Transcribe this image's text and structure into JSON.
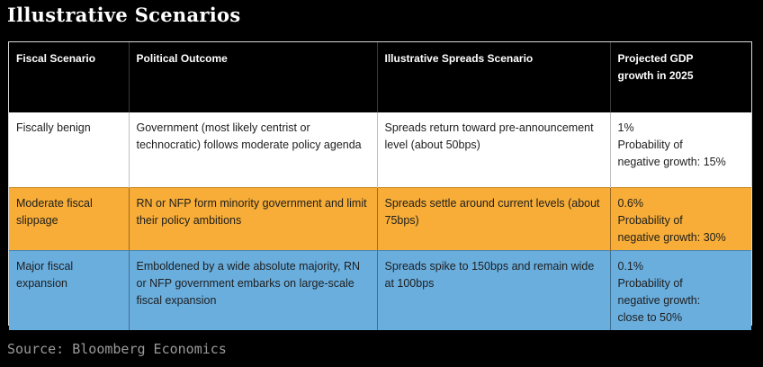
{
  "title": "Illustrative Scenarios",
  "colors": {
    "background": "#000000",
    "header_row": "#000000",
    "benign_row": "#ffffff",
    "moderate_row": "#f7ad37",
    "major_row": "#6aaede"
  },
  "table": {
    "headers": {
      "fiscal_scenario": "Fiscal Scenario",
      "political_outcome": "Political Outcome",
      "spreads_scenario": "Illustrative Spreads Scenario",
      "gdp_growth_line1": "Projected GDP",
      "gdp_growth_line2": "growth in 2025"
    },
    "rows": [
      {
        "fiscal_scenario": "Fiscally benign",
        "political_outcome": "Government (most likely centrist or technocratic) follows moderate policy agenda",
        "spreads_scenario": "Spreads return toward pre-announcement level (about 50bps)",
        "gdp_growth": "1%",
        "probability_line1": "Probability of",
        "probability_line2": "negative growth: 15%"
      },
      {
        "fiscal_scenario": "Moderate fiscal slippage",
        "political_outcome": "RN or NFP form minority government and limit their policy ambitions",
        "spreads_scenario": "Spreads settle around current levels (about 75bps)",
        "gdp_growth": "0.6%",
        "probability_line1": "Probability of",
        "probability_line2": "negative growth: 30%"
      },
      {
        "fiscal_scenario": "Major fiscal expansion",
        "political_outcome": "Emboldened by a wide absolute majority, RN or NFP government embarks on large-scale fiscal expansion",
        "spreads_scenario": "Spreads spike to 150bps and remain wide at 100bps",
        "gdp_growth": "0.1%",
        "probability_line1": "Probability of",
        "probability_line2": "negative growth:",
        "probability_line3": "close to 50%"
      }
    ]
  },
  "source": "Source: Bloomberg Economics"
}
